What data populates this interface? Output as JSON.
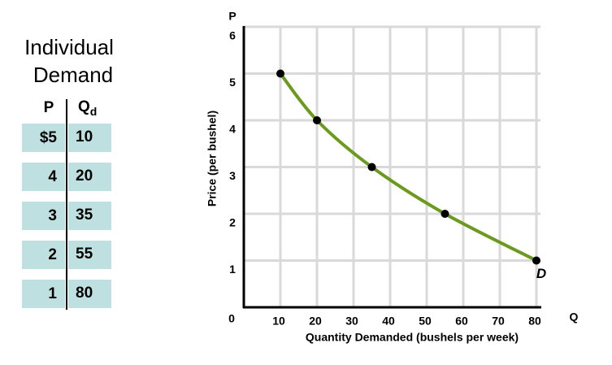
{
  "table": {
    "title": "Individual Demand",
    "headers": [
      "P",
      "Q"
    ],
    "header_subscript": "d",
    "rows": [
      [
        "$5",
        "10"
      ],
      [
        "4",
        "20"
      ],
      [
        "3",
        "35"
      ],
      [
        "2",
        "55"
      ],
      [
        "1",
        "80"
      ]
    ]
  },
  "chart_data": {
    "type": "line",
    "x_axis_label": "Quantity Demanded (bushels per week)",
    "y_axis_label": "Price (per bushel)",
    "x_axis_letter": "Q",
    "y_axis_letter": "P",
    "x": [
      10,
      20,
      35,
      55,
      80
    ],
    "series": [
      {
        "name": "D",
        "color": "#6b9a1e",
        "values": [
          5,
          4,
          3,
          2,
          1
        ]
      }
    ],
    "xlim": [
      0,
      80
    ],
    "xticks": [
      0,
      10,
      20,
      30,
      40,
      50,
      60,
      70,
      80
    ],
    "ylim": [
      0,
      6
    ],
    "yticks": [
      1,
      2,
      3,
      4,
      5,
      6
    ],
    "grid": true
  }
}
